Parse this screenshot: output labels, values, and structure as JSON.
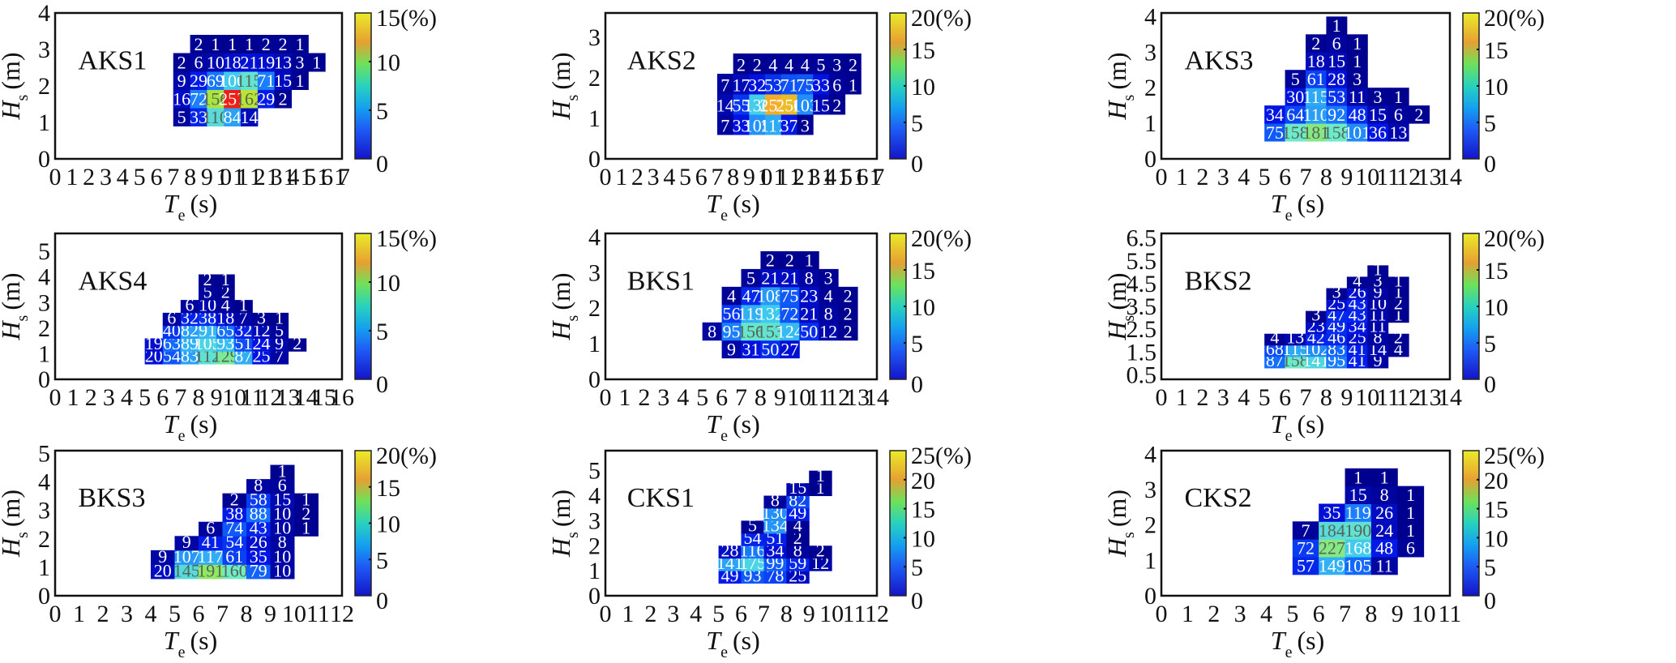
{
  "figure": {
    "x_axis_label": "T",
    "x_axis_sub": "e",
    "x_axis_unit": "(s)",
    "y_axis_label": "H",
    "y_axis_sub": "s",
    "y_axis_unit": "(m)",
    "colorbar_unit": "(%)"
  },
  "chart_data": [
    {
      "type": "heatmap",
      "title": "AKS1",
      "xlabel": "Te (s)",
      "ylabel": "Hs (m)",
      "xlim": [
        0,
        17
      ],
      "ylim": [
        0,
        4
      ],
      "xticks": [
        0,
        1,
        2,
        3,
        4,
        5,
        6,
        7,
        8,
        9,
        10,
        11,
        12,
        13,
        14,
        15,
        16,
        17
      ],
      "yticks": [
        0,
        1,
        2,
        3,
        4
      ],
      "colorbar": {
        "min": 0,
        "max": 15,
        "ticks": [
          0,
          5,
          10,
          15
        ],
        "top_label": "15(%)"
      },
      "hs_start": 0.9,
      "hs_bin": 0.5,
      "rows": [
        {
          "te_start": 7,
          "values": [
            5,
            33,
            110,
            84,
            14
          ]
        },
        {
          "te_start": 7,
          "values": [
            16,
            72,
            156,
            257,
            162,
            29,
            2
          ]
        },
        {
          "te_start": 7,
          "values": [
            9,
            29,
            69,
            100,
            115,
            71,
            15,
            1
          ]
        },
        {
          "te_start": 7,
          "values": [
            2,
            6,
            10,
            18,
            21,
            19,
            13,
            3,
            1
          ]
        },
        {
          "te_start": 8,
          "values": [
            2,
            1,
            1,
            1,
            2,
            2,
            1
          ]
        }
      ]
    },
    {
      "type": "heatmap",
      "title": "AKS2",
      "xlabel": "Te (s)",
      "ylabel": "Hs (m)",
      "xlim": [
        0,
        17
      ],
      "ylim": [
        0,
        3.6
      ],
      "xticks": [
        0,
        1,
        2,
        3,
        4,
        5,
        6,
        7,
        8,
        9,
        10,
        11,
        12,
        13,
        14,
        15,
        16,
        17
      ],
      "yticks": [
        0,
        1,
        2,
        3
      ],
      "colorbar": {
        "min": 0,
        "max": 20,
        "ticks": [
          0,
          5,
          10,
          15,
          20
        ],
        "top_label": "20(%)"
      },
      "hs_start": 0.6,
      "hs_bin": 0.5,
      "rows": [
        {
          "te_start": 7,
          "values": [
            7,
            33,
            105,
            117,
            37,
            3
          ]
        },
        {
          "te_start": 7,
          "values": [
            14,
            55,
            136,
            257,
            250,
            103,
            15,
            2
          ]
        },
        {
          "te_start": 7,
          "values": [
            7,
            17,
            32,
            53,
            71,
            75,
            33,
            6,
            1
          ]
        },
        {
          "te_start": 8,
          "values": [
            2,
            2,
            4,
            4,
            4,
            5,
            3,
            2
          ]
        }
      ]
    },
    {
      "type": "heatmap",
      "title": "AKS3",
      "xlabel": "Te (s)",
      "ylabel": "Hs (m)",
      "xlim": [
        0,
        14
      ],
      "ylim": [
        0,
        4.1
      ],
      "xticks": [
        0,
        1,
        2,
        3,
        4,
        5,
        6,
        7,
        8,
        9,
        10,
        11,
        12,
        13,
        14
      ],
      "yticks": [
        0,
        1,
        2,
        3,
        4
      ],
      "colorbar": {
        "min": 0,
        "max": 20,
        "ticks": [
          0,
          5,
          10,
          15,
          20
        ],
        "top_label": "20(%)"
      },
      "hs_start": 0.5,
      "hs_bin": 0.5,
      "rows": [
        {
          "te_start": 5,
          "values": [
            75,
            158,
            181,
            158,
            101,
            36,
            13
          ]
        },
        {
          "te_start": 5,
          "values": [
            34,
            64,
            110,
            92,
            48,
            15,
            6,
            2
          ]
        },
        {
          "te_start": 6,
          "values": [
            30,
            115,
            53,
            11,
            3,
            1
          ]
        },
        {
          "te_start": 6,
          "values": [
            5,
            61,
            28,
            3
          ]
        },
        {
          "te_start": 7,
          "values": [
            18,
            15,
            1
          ]
        },
        {
          "te_start": 7,
          "values": [
            2,
            6,
            1
          ]
        },
        {
          "te_start": 8,
          "values": [
            1
          ]
        }
      ]
    },
    {
      "type": "heatmap",
      "title": "AKS4",
      "xlabel": "Te (s)",
      "ylabel": "Hs (m)",
      "xlim": [
        0,
        16
      ],
      "ylim": [
        0,
        5.7
      ],
      "xticks": [
        0,
        1,
        2,
        3,
        4,
        5,
        6,
        7,
        8,
        9,
        10,
        11,
        12,
        13,
        14,
        15,
        16
      ],
      "yticks": [
        0,
        1,
        2,
        3,
        4,
        5
      ],
      "colorbar": {
        "min": 0,
        "max": 15,
        "ticks": [
          0,
          5,
          10,
          15
        ],
        "top_label": "15(%)"
      },
      "hs_start": 0.6,
      "hs_bin": 0.5,
      "rows": [
        {
          "te_start": 5,
          "values": [
            20,
            54,
            83,
            112,
            129,
            87,
            25,
            7
          ]
        },
        {
          "te_start": 5,
          "values": [
            19,
            63,
            89,
            105,
            93,
            51,
            24,
            9,
            2
          ]
        },
        {
          "te_start": 6,
          "values": [
            40,
            82,
            91,
            65,
            32,
            12,
            5
          ]
        },
        {
          "te_start": 6,
          "values": [
            6,
            32,
            38,
            18,
            7,
            3,
            1
          ]
        },
        {
          "te_start": 7,
          "values": [
            6,
            10,
            4,
            1
          ]
        },
        {
          "te_start": 8,
          "values": [
            5,
            2
          ]
        },
        {
          "te_start": 8,
          "values": [
            2,
            1
          ]
        }
      ]
    },
    {
      "type": "heatmap",
      "title": "BKS1",
      "xlabel": "Te (s)",
      "ylabel": "Hs (m)",
      "xlim": [
        0,
        14
      ],
      "ylim": [
        0,
        4.1
      ],
      "xticks": [
        0,
        1,
        2,
        3,
        4,
        5,
        6,
        7,
        8,
        9,
        10,
        11,
        12,
        13,
        14
      ],
      "yticks": [
        0,
        1,
        2,
        3,
        4
      ],
      "colorbar": {
        "min": 0,
        "max": 20,
        "ticks": [
          0,
          5,
          10,
          15,
          20
        ],
        "top_label": "20(%)"
      },
      "hs_start": 0.6,
      "hs_bin": 0.5,
      "rows": [
        {
          "te_start": 6,
          "values": [
            9,
            31,
            50,
            27
          ]
        },
        {
          "te_start": 5,
          "values": [
            8,
            95,
            156,
            153,
            124,
            50,
            12,
            2
          ]
        },
        {
          "te_start": 6,
          "values": [
            56,
            119,
            132,
            72,
            21,
            8,
            2
          ]
        },
        {
          "te_start": 6,
          "values": [
            4,
            47,
            108,
            75,
            23,
            4,
            2
          ]
        },
        {
          "te_start": 7,
          "values": [
            5,
            21,
            21,
            8,
            3
          ]
        },
        {
          "te_start": 8,
          "values": [
            2,
            2,
            1
          ]
        }
      ]
    },
    {
      "type": "heatmap",
      "title": "BKS2",
      "xlabel": "Te (s)",
      "ylabel": "Hs (m)",
      "xlim": [
        0,
        14
      ],
      "ylim": [
        0.3,
        6.7
      ],
      "xticks": [
        0,
        1,
        2,
        3,
        4,
        5,
        6,
        7,
        8,
        9,
        10,
        11,
        12,
        13,
        14
      ],
      "yticks": [
        0.5,
        1.5,
        2.5,
        3.5,
        4.5,
        5.5,
        6.5
      ],
      "colorbar": {
        "min": 0,
        "max": 20,
        "ticks": [
          0,
          5,
          10,
          15,
          20
        ],
        "top_label": "20(%)"
      },
      "hs_start": 0.8,
      "hs_bin": 0.5,
      "rows": [
        {
          "te_start": 5,
          "values": [
            87,
            158,
            141,
            95,
            41,
            9
          ]
        },
        {
          "te_start": 5,
          "values": [
            68,
            115,
            102,
            83,
            41,
            14,
            4
          ]
        },
        {
          "te_start": 5,
          "values": [
            4,
            13,
            42,
            46,
            25,
            8,
            2
          ]
        },
        {
          "te_start": 7,
          "values": [
            23,
            49,
            34,
            11
          ]
        },
        {
          "te_start": 7,
          "values": [
            3,
            47,
            43,
            11,
            1
          ]
        },
        {
          "te_start": 8,
          "values": [
            25,
            43,
            10,
            2
          ]
        },
        {
          "te_start": 8,
          "values": [
            3,
            26,
            9,
            1
          ]
        },
        {
          "te_start": 9,
          "values": [
            4,
            3,
            1
          ]
        },
        {
          "te_start": 10,
          "values": [
            1
          ]
        }
      ]
    },
    {
      "type": "heatmap",
      "title": "BKS3",
      "xlabel": "Te (s)",
      "ylabel": "Hs (m)",
      "xlim": [
        0,
        12
      ],
      "ylim": [
        0,
        5.1
      ],
      "xticks": [
        0,
        1,
        2,
        3,
        4,
        5,
        6,
        7,
        8,
        9,
        10,
        11,
        12
      ],
      "yticks": [
        0,
        1,
        2,
        3,
        4,
        5
      ],
      "colorbar": {
        "min": 0,
        "max": 20,
        "ticks": [
          0,
          5,
          10,
          15,
          20
        ],
        "top_label": "20(%)"
      },
      "hs_start": 0.6,
      "hs_bin": 0.5,
      "rows": [
        {
          "te_start": 4,
          "values": [
            20,
            145,
            191,
            160,
            79,
            10
          ]
        },
        {
          "te_start": 4,
          "values": [
            9,
            107,
            117,
            61,
            35,
            10
          ]
        },
        {
          "te_start": 5,
          "values": [
            9,
            41,
            54,
            26,
            8
          ]
        },
        {
          "te_start": 6,
          "values": [
            6,
            74,
            43,
            10,
            1
          ]
        },
        {
          "te_start": 7,
          "values": [
            38,
            88,
            10,
            2
          ]
        },
        {
          "te_start": 7,
          "values": [
            2,
            58,
            15,
            1
          ]
        },
        {
          "te_start": 8,
          "values": [
            8,
            6
          ]
        },
        {
          "te_start": 9,
          "values": [
            1
          ]
        }
      ]
    },
    {
      "type": "heatmap",
      "title": "CKS1",
      "xlabel": "Te (s)",
      "ylabel": "Hs (m)",
      "xlim": [
        0,
        12
      ],
      "ylim": [
        0,
        5.8
      ],
      "xticks": [
        0,
        1,
        2,
        3,
        4,
        5,
        6,
        7,
        8,
        9,
        10,
        11,
        12
      ],
      "yticks": [
        0,
        1,
        2,
        3,
        4,
        5
      ],
      "colorbar": {
        "min": 0,
        "max": 25,
        "ticks": [
          0,
          5,
          10,
          15,
          20,
          25
        ],
        "top_label": "25(%)"
      },
      "hs_start": 0.5,
      "hs_bin": 0.5,
      "rows": [
        {
          "te_start": 5,
          "values": [
            49,
            93,
            78,
            25
          ]
        },
        {
          "te_start": 5,
          "values": [
            141,
            175,
            99,
            59,
            12
          ]
        },
        {
          "te_start": 5,
          "values": [
            28,
            116,
            34,
            8,
            2
          ]
        },
        {
          "te_start": 6,
          "values": [
            54,
            51,
            2
          ]
        },
        {
          "te_start": 6,
          "values": [
            5,
            134,
            4
          ]
        },
        {
          "te_start": 7,
          "values": [
            130,
            49
          ]
        },
        {
          "te_start": 7,
          "values": [
            8,
            82
          ]
        },
        {
          "te_start": 8,
          "values": [
            15,
            1
          ]
        },
        {
          "te_start": 9,
          "values": [
            1
          ]
        }
      ]
    },
    {
      "type": "heatmap",
      "title": "CKS2",
      "xlabel": "Te (s)",
      "ylabel": "Hs (m)",
      "xlim": [
        0,
        11
      ],
      "ylim": [
        0,
        4.1
      ],
      "xticks": [
        0,
        1,
        2,
        3,
        4,
        5,
        6,
        7,
        8,
        9,
        10,
        11
      ],
      "yticks": [
        0,
        1,
        2,
        3,
        4
      ],
      "colorbar": {
        "min": 0,
        "max": 25,
        "ticks": [
          0,
          5,
          10,
          15,
          20,
          25
        ],
        "top_label": "25(%)"
      },
      "hs_start": 0.6,
      "hs_bin": 0.5,
      "rows": [
        {
          "te_start": 5,
          "values": [
            57,
            149,
            105,
            11
          ]
        },
        {
          "te_start": 5,
          "values": [
            72,
            227,
            168,
            48,
            6
          ]
        },
        {
          "te_start": 5,
          "values": [
            7,
            184,
            190,
            24,
            1
          ]
        },
        {
          "te_start": 6,
          "values": [
            35,
            119,
            26,
            1
          ]
        },
        {
          "te_start": 7,
          "values": [
            15,
            8,
            1
          ]
        },
        {
          "te_start": 7,
          "values": [
            1,
            1
          ]
        }
      ]
    }
  ]
}
